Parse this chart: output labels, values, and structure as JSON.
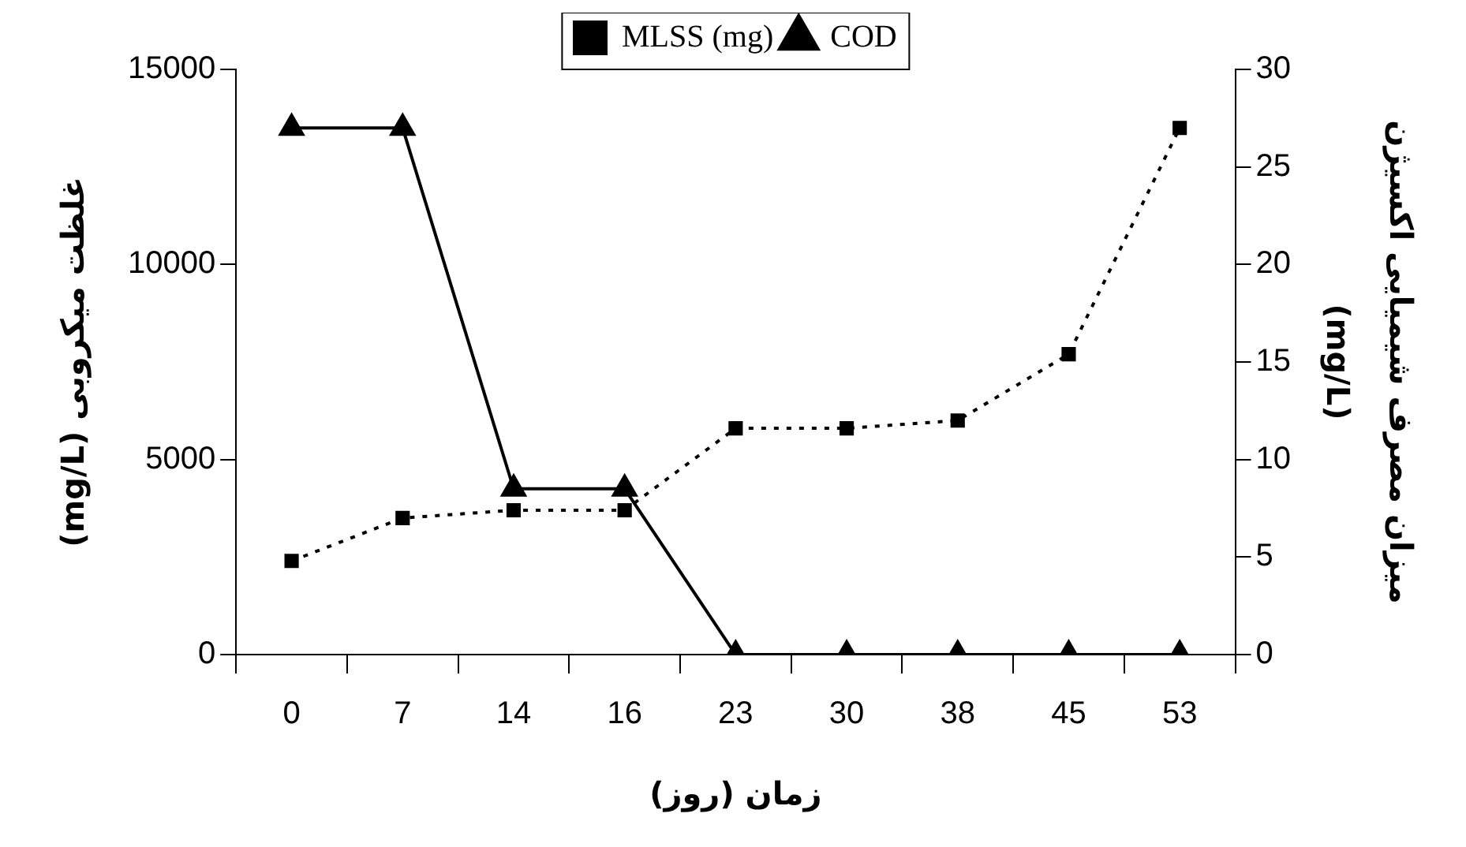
{
  "chart_data": {
    "type": "line",
    "xlabel": "زمان (روز)",
    "ylabel": "غلظت میکروبی (mg/L)",
    "y2label": "میزان مصرف شیمیایی اکسیژن (mg/L)",
    "categories": [
      "0",
      "7",
      "14",
      "16",
      "23",
      "30",
      "38",
      "45",
      "53"
    ],
    "series": [
      {
        "name": "MLSS (mg)",
        "color": "#000000",
        "marker": "square",
        "line_style": "dotted",
        "values": [
          2400,
          3500,
          3700,
          3700,
          5800,
          5800,
          6000,
          7700,
          13500
        ]
      },
      {
        "name": "COD",
        "color": "#000000",
        "marker": "triangle",
        "line_style": "solid",
        "axis": "y2",
        "values": [
          27,
          27,
          8.5,
          8.5,
          0,
          0,
          0,
          0,
          0
        ]
      }
    ],
    "ylim": [
      0,
      15000
    ],
    "yticks": [
      0,
      5000,
      10000,
      15000
    ],
    "y2lim": [
      0,
      30
    ],
    "y2ticks": [
      0,
      5,
      10,
      15,
      20,
      25,
      30
    ],
    "grid": false,
    "legend": "top"
  }
}
